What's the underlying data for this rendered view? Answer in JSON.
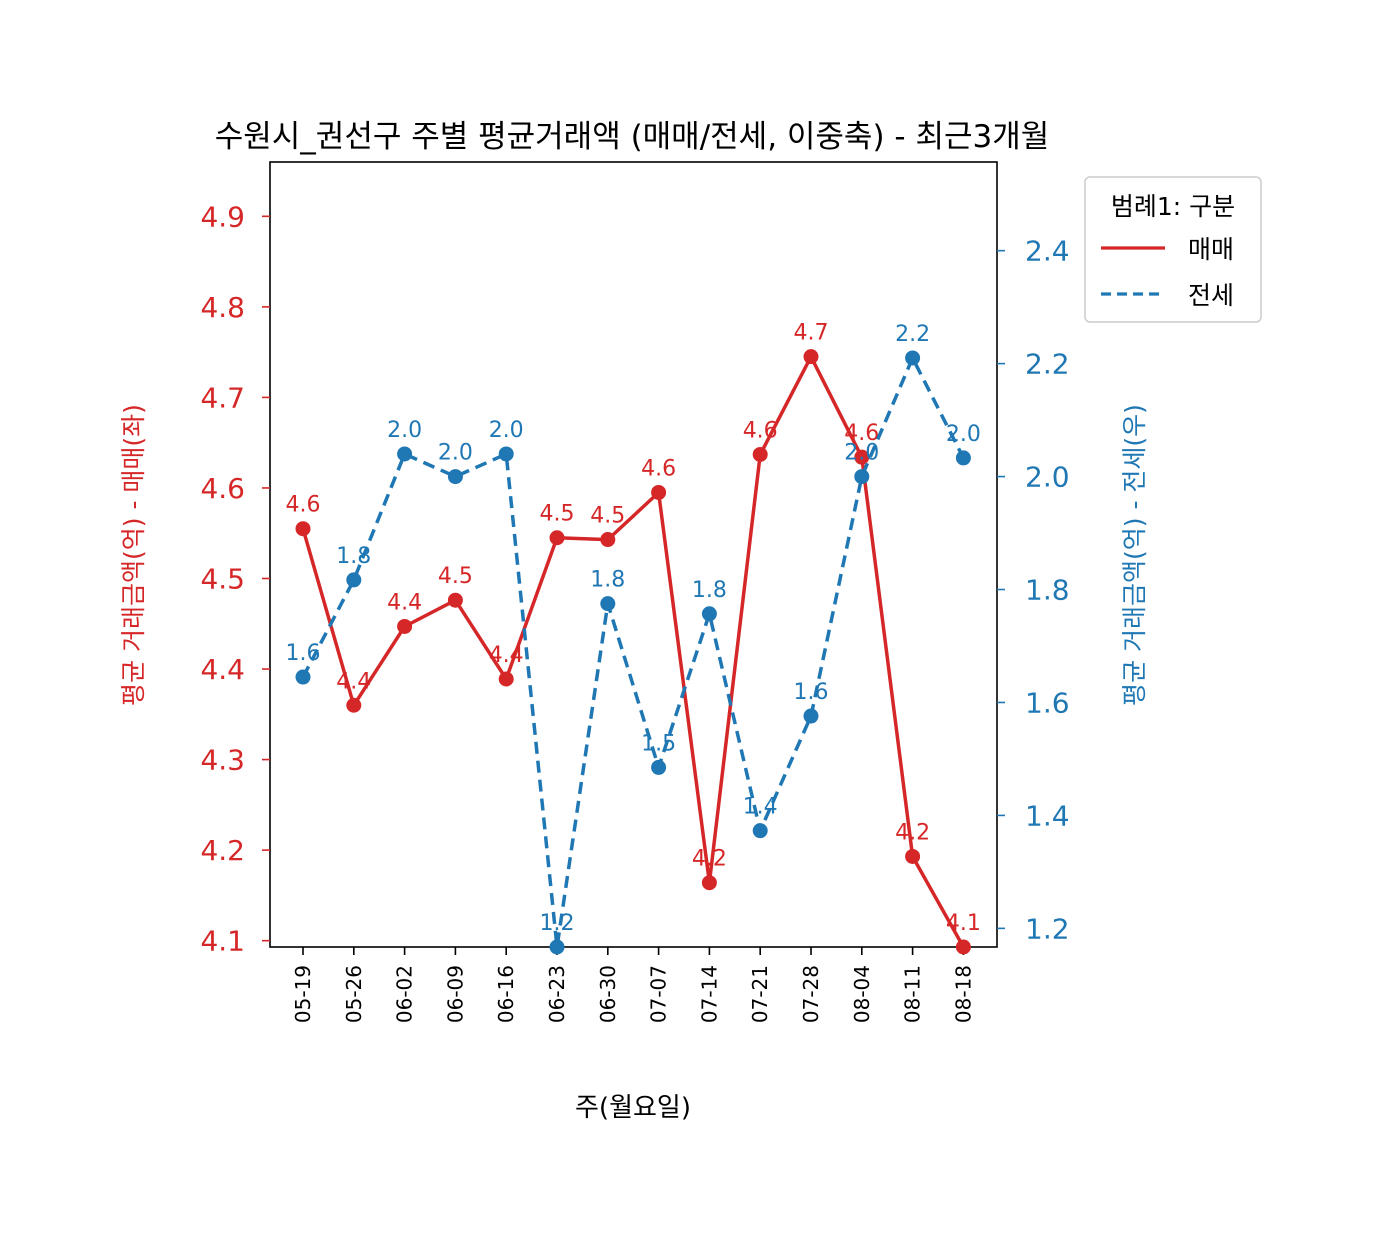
{
  "chart_data": {
    "type": "line",
    "title": "수원시_권선구 주별 평균거래액 (매매/전세, 이중축) - 최근3개월",
    "xlabel": "주(월요일)",
    "ylabel_left": "평균 거래금액(억) - 매매(좌)",
    "ylabel_right": "평균 거래금액(억) - 전세(우)",
    "categories": [
      "05-19",
      "05-26",
      "06-02",
      "06-09",
      "06-16",
      "06-23",
      "06-30",
      "07-07",
      "07-14",
      "07-21",
      "07-28",
      "08-04",
      "08-11",
      "08-18"
    ],
    "y_left": {
      "ylim": [
        4.093,
        4.96
      ],
      "ticks": [
        "4.1",
        "4.2",
        "4.3",
        "4.4",
        "4.5",
        "4.6",
        "4.7",
        "4.8",
        "4.9"
      ]
    },
    "y_right": {
      "ylim": [
        1.167,
        2.557
      ],
      "ticks": [
        "1.2",
        "1.4",
        "1.6",
        "1.8",
        "2.0",
        "2.2",
        "2.4"
      ]
    },
    "legend": {
      "title": "범례1: 구분",
      "position": "top-right-outside"
    },
    "grid": false,
    "series": [
      {
        "name": "매매",
        "axis": "left",
        "color": "#d62728",
        "style": "solid",
        "values": [
          4.555,
          4.36,
          4.447,
          4.476,
          4.389,
          4.545,
          4.543,
          4.595,
          4.164,
          4.637,
          4.745,
          4.634,
          4.193,
          4.093
        ],
        "labels": [
          "4.6",
          "4.4",
          "4.4",
          "4.5",
          "4.4",
          "4.5",
          "4.5",
          "4.6",
          "4.2",
          "4.6",
          "4.7",
          "4.6",
          "4.2",
          "4.1"
        ]
      },
      {
        "name": "전세",
        "axis": "right",
        "color": "#1f77b4",
        "style": "dashed",
        "values": [
          1.645,
          1.817,
          2.04,
          2.0,
          2.04,
          1.167,
          1.775,
          1.485,
          1.757,
          1.373,
          1.576,
          2.0,
          2.21,
          2.033
        ],
        "labels": [
          "1.6",
          "1.8",
          "2.0",
          "2.0",
          "2.0",
          "1.2",
          "1.8",
          "1.5",
          "1.8",
          "1.4",
          "1.6",
          "2.0",
          "2.2",
          "2.0"
        ]
      }
    ]
  }
}
